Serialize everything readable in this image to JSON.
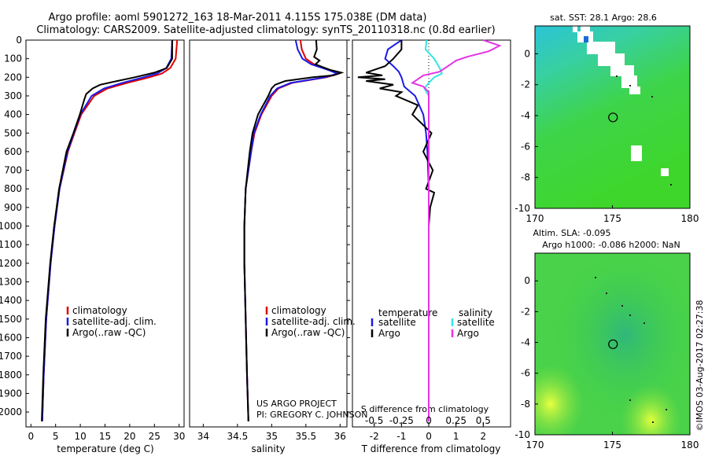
{
  "title_line1": "Argo profile: aoml 5901272_163 18-Mar-2011 4.115S 175.038E (DM data)",
  "title_line2": "Climatology: CARS2009. Satellite-adjusted climatology: synTS_20110318.nc (0.8d earlier)",
  "credit_left": "US ARGO PROJECT",
  "credit_pi": "PI: GREGORY C. JOHNSON",
  "credit_right": "©IMOS 03-Aug-2017 02:27:38",
  "colors": {
    "climatology": "#e00000",
    "satellite": "#1a1ae6",
    "argo": "#000000",
    "sal_sat": "#33e6e6",
    "sal_argo": "#e633e6"
  },
  "chart_data": [
    {
      "type": "line",
      "name": "temperature",
      "xlabel": "temperature (deg C)",
      "ylabel": "",
      "xlim": [
        -1,
        31
      ],
      "ylim": [
        2080,
        0
      ],
      "xticks": [
        0,
        5,
        10,
        15,
        20,
        25,
        30
      ],
      "yticks": [
        0,
        100,
        200,
        300,
        400,
        500,
        600,
        700,
        800,
        900,
        1000,
        1100,
        1200,
        1300,
        1400,
        1500,
        1600,
        1700,
        1800,
        1900,
        2000
      ],
      "legend": {
        "position": "lower-left",
        "items": [
          "climatology",
          "satellite-adj. clim.",
          "Argo(..raw -QC)"
        ]
      },
      "series": [
        {
          "name": "climatology",
          "color": "#e00000",
          "depth": [
            0,
            100,
            150,
            180,
            200,
            230,
            260,
            300,
            400,
            500,
            600,
            800,
            1000,
            1200,
            1500,
            1800,
            2050
          ],
          "values": [
            29.6,
            29.3,
            28.2,
            26.5,
            24.0,
            19.5,
            15.5,
            12.8,
            10.2,
            8.8,
            7.5,
            5.8,
            4.8,
            4.0,
            3.1,
            2.6,
            2.3
          ]
        },
        {
          "name": "satellite-adj. clim.",
          "color": "#1a1ae6",
          "depth": [
            0,
            100,
            150,
            180,
            200,
            230,
            260,
            300,
            400,
            500,
            600,
            800,
            1000,
            1200,
            1500,
            1800,
            2050
          ],
          "values": [
            28.6,
            28.4,
            27.4,
            25.5,
            22.8,
            18.5,
            14.8,
            12.3,
            10.0,
            8.7,
            7.4,
            5.8,
            4.8,
            4.0,
            3.1,
            2.6,
            2.3
          ]
        },
        {
          "name": "Argo(..raw -QC)",
          "color": "#000000",
          "depth": [
            0,
            100,
            150,
            175,
            200,
            220,
            240,
            260,
            290,
            320,
            400,
            500,
            600,
            800,
            1000,
            1200,
            1500,
            1800,
            2050
          ],
          "values": [
            28.6,
            28.6,
            27.5,
            25.0,
            21.0,
            17.5,
            14.0,
            12.5,
            11.2,
            10.8,
            9.9,
            8.6,
            7.2,
            5.7,
            4.7,
            3.9,
            3.0,
            2.5,
            2.2
          ]
        }
      ]
    },
    {
      "type": "line",
      "name": "salinity",
      "xlabel": "salinity",
      "xlim": [
        33.8,
        36.1
      ],
      "ylim": [
        2080,
        0
      ],
      "xticks": [
        34,
        34.5,
        35,
        35.5,
        36
      ],
      "xticklabels": [
        "34",
        "34.5",
        "35",
        "35.5",
        "36"
      ],
      "legend": {
        "position": "lower-left",
        "items": [
          "climatology",
          "satellite-adj. clim.",
          "Argo(..raw -QC)"
        ]
      },
      "series": [
        {
          "name": "climatology",
          "color": "#e00000",
          "depth": [
            0,
            50,
            100,
            130,
            160,
            180,
            200,
            230,
            260,
            300,
            400,
            500,
            600,
            800,
            1000,
            1200,
            1500,
            1800,
            2050
          ],
          "values": [
            35.42,
            35.44,
            35.5,
            35.62,
            35.85,
            35.98,
            35.8,
            35.3,
            35.1,
            35.0,
            34.85,
            34.75,
            34.7,
            34.62,
            34.6,
            34.6,
            34.62,
            34.64,
            34.66
          ]
        },
        {
          "name": "satellite-adj. clim.",
          "color": "#1a1ae6",
          "depth": [
            0,
            50,
            100,
            130,
            160,
            180,
            200,
            230,
            260,
            300,
            400,
            500,
            600,
            800,
            1000,
            1200,
            1500,
            1800,
            2050
          ],
          "values": [
            35.35,
            35.38,
            35.45,
            35.58,
            35.82,
            35.96,
            35.78,
            35.28,
            35.08,
            34.98,
            34.84,
            34.74,
            34.7,
            34.62,
            34.6,
            34.6,
            34.62,
            34.64,
            34.66
          ]
        },
        {
          "name": "Argo(..raw -QC)",
          "color": "#000000",
          "depth": [
            0,
            50,
            90,
            110,
            130,
            160,
            175,
            190,
            200,
            220,
            240,
            260,
            300,
            400,
            500,
            600,
            800,
            1000,
            1200,
            1500,
            1800,
            2050
          ],
          "values": [
            35.65,
            35.66,
            35.62,
            35.7,
            35.64,
            35.85,
            36.02,
            35.9,
            35.6,
            35.2,
            35.05,
            35.0,
            34.95,
            34.8,
            34.72,
            34.68,
            34.62,
            34.6,
            34.6,
            34.62,
            34.64,
            34.66
          ]
        }
      ]
    },
    {
      "type": "line",
      "name": "difference from climatology",
      "xlabel_top": "S difference from climatology",
      "xlabel_bottom": "T difference from climatology",
      "xlim_T": [
        -2.8,
        3.0
      ],
      "xlim_S": [
        -0.7,
        0.75
      ],
      "ylim": [
        2080,
        0
      ],
      "xticks_T": [
        -2,
        -1,
        0,
        1,
        2
      ],
      "xticks_S": [
        -0.5,
        -0.25,
        0,
        0.25,
        0.5
      ],
      "xticklabels_S": [
        "-0.5",
        "-0.25",
        "0",
        "0.25",
        "0.5"
      ],
      "legend": {
        "position": "lower-center",
        "temperature_header": "temperature",
        "salinity_header": "salinity",
        "items_T": [
          "satellite",
          "Argo"
        ],
        "items_S": [
          "satellite",
          "Argo"
        ]
      },
      "series": [
        {
          "name": "temperature satellite",
          "color": "#1a1ae6",
          "depth": [
            0,
            50,
            100,
            140,
            170,
            200,
            250,
            300,
            400,
            500,
            600,
            800,
            1000,
            1300,
            1600,
            2050
          ],
          "values": [
            -1.0,
            -1.5,
            -1.6,
            -1.3,
            -1.1,
            -1.0,
            -0.9,
            -0.5,
            -0.2,
            -0.1,
            -0.05,
            0,
            0,
            0,
            0,
            0
          ]
        },
        {
          "name": "temperature Argo",
          "color": "#000000",
          "depth": [
            0,
            50,
            100,
            140,
            160,
            175,
            190,
            200,
            210,
            220,
            240,
            260,
            280,
            300,
            350,
            400,
            500,
            600,
            700,
            800,
            820,
            900,
            1000,
            1300,
            1600,
            2050
          ],
          "values": [
            -1.0,
            -1.0,
            -1.3,
            -1.6,
            -2.0,
            -2.3,
            -1.7,
            -2.6,
            -1.6,
            -2.3,
            -1.3,
            -1.8,
            -1.0,
            -1.2,
            -0.4,
            -0.6,
            0.1,
            -0.2,
            0.15,
            -0.1,
            0.2,
            0.05,
            0,
            0,
            0,
            0
          ]
        },
        {
          "name": "salinity satellite",
          "color": "#33e6e6",
          "depth": [
            0,
            50,
            100,
            150,
            180,
            200,
            230,
            260,
            300,
            400,
            500,
            600,
            800,
            1000,
            1300,
            1600,
            2050
          ],
          "values": [
            -0.02,
            -0.03,
            0.05,
            0.1,
            0.12,
            0.05,
            0.0,
            -0.04,
            0.0,
            0.0,
            0.0,
            0.0,
            0.0,
            0.0,
            0.0,
            0.0,
            0.0
          ]
        },
        {
          "name": "salinity Argo",
          "color": "#e633e6",
          "depth": [
            0,
            30,
            60,
            90,
            110,
            130,
            150,
            170,
            190,
            210,
            230,
            250,
            280,
            320,
            400,
            500,
            600,
            800,
            1000,
            1300,
            1600,
            2050
          ],
          "values": [
            0.5,
            0.65,
            0.55,
            0.35,
            0.25,
            0.2,
            0.15,
            0.1,
            -0.05,
            -0.1,
            -0.15,
            -0.05,
            0.0,
            0.0,
            0.0,
            0.0,
            0.0,
            0.0,
            0.0,
            0.0,
            0.0,
            0.0
          ]
        }
      ]
    },
    {
      "type": "heatmap",
      "name": "SST map",
      "title": "sat. SST: 28.1  Argo: 28.6",
      "xlim": [
        170,
        180
      ],
      "ylim": [
        -10,
        1.8
      ],
      "xticks": [
        170,
        175,
        180
      ],
      "yticks": [
        0,
        -2,
        -4,
        -6,
        -8,
        -10
      ],
      "marker": {
        "lon": 175.038,
        "lat": -4.115
      }
    },
    {
      "type": "heatmap",
      "name": "SLA map",
      "title_line1": "Altim. SLA: -0.095",
      "title_line2": "Argo h1000: -0.086 h2000: NaN",
      "xlim": [
        170,
        180
      ],
      "ylim": [
        -10,
        1.8
      ],
      "xticks": [
        170,
        175,
        180
      ],
      "yticks": [
        0,
        -2,
        -4,
        -6,
        -8,
        -10
      ],
      "marker": {
        "lon": 175.038,
        "lat": -4.115
      }
    }
  ]
}
